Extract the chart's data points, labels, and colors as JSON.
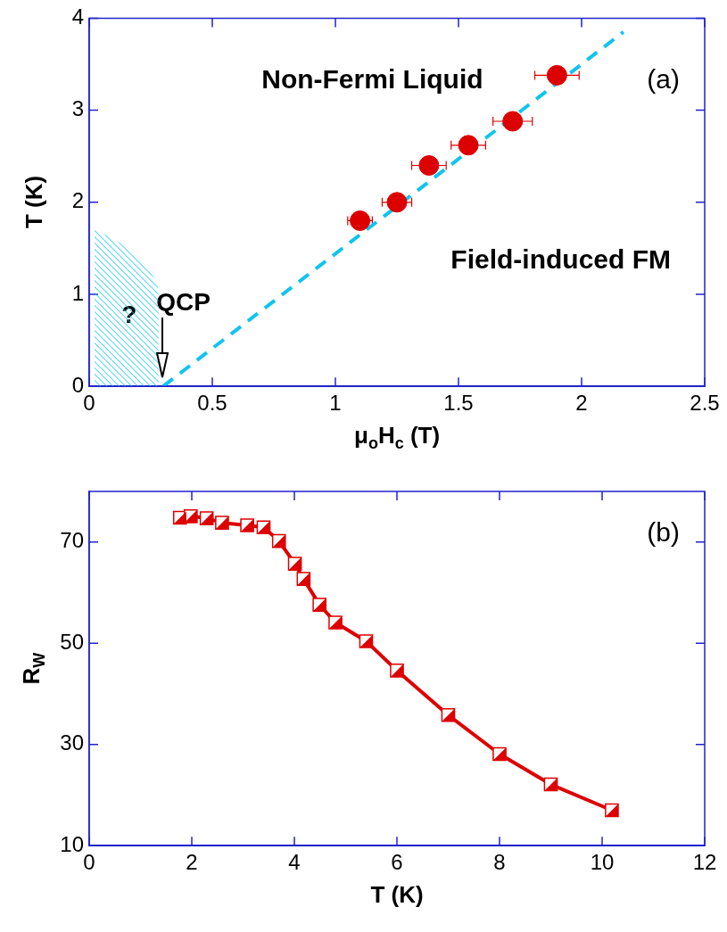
{
  "chart_data": [
    {
      "type": "scatter",
      "xlabel": "μ$_{o}$H$_{c}$ (T)",
      "ylabel": "T (K)",
      "xlim": [
        0,
        2.5
      ],
      "ylim": [
        0,
        4
      ],
      "xticks": [
        0,
        0.5,
        1,
        1.5,
        2,
        2.5
      ],
      "yticks": [
        0,
        1,
        2,
        3,
        4
      ],
      "grid": false,
      "legend": false,
      "marker": "circle",
      "series": [
        {
          "type": "scatter",
          "color": "#dd0000",
          "x": [
            1.1,
            1.25,
            1.38,
            1.54,
            1.72,
            1.9
          ],
          "values": [
            1.8,
            2.0,
            2.4,
            2.62,
            2.88,
            3.38
          ],
          "xerrors": [
            0.05,
            0.06,
            0.07,
            0.07,
            0.08,
            0.09
          ]
        },
        {
          "type": "line",
          "color": "#11c4ee",
          "line_style": "dashed",
          "marker": "none",
          "x": [
            0.3,
            2.17
          ],
          "values": [
            0,
            3.85
          ]
        }
      ],
      "annotations": [
        "(a)",
        "Non-Fermi Liquid",
        "Field-induced FM",
        "?",
        "QCP"
      ]
    },
    {
      "type": "line",
      "xlabel": "T (K)",
      "ylabel": "R$_{W}$",
      "xlim": [
        0,
        12
      ],
      "ylim": [
        10,
        80
      ],
      "xticks": [
        0,
        2,
        4,
        6,
        8,
        10,
        12
      ],
      "yticks": [
        10,
        30,
        50,
        70
      ],
      "grid": false,
      "legend": false,
      "marker": "square",
      "series": [
        {
          "color": "#dd0000",
          "x": [
            1.77,
            1.98,
            2.29,
            2.59,
            3.08,
            3.4,
            3.7,
            4.01,
            4.18,
            4.49,
            4.8,
            5.4,
            6.0,
            7.0,
            8.0,
            9.0,
            10.19
          ],
          "values": [
            74.8,
            75.1,
            74.7,
            73.8,
            73.3,
            72.9,
            70.2,
            65.7,
            62.7,
            57.6,
            54.1,
            50.4,
            44.6,
            35.8,
            28.1,
            22.1,
            17.0
          ]
        }
      ],
      "annotations": [
        "(b)"
      ]
    }
  ]
}
